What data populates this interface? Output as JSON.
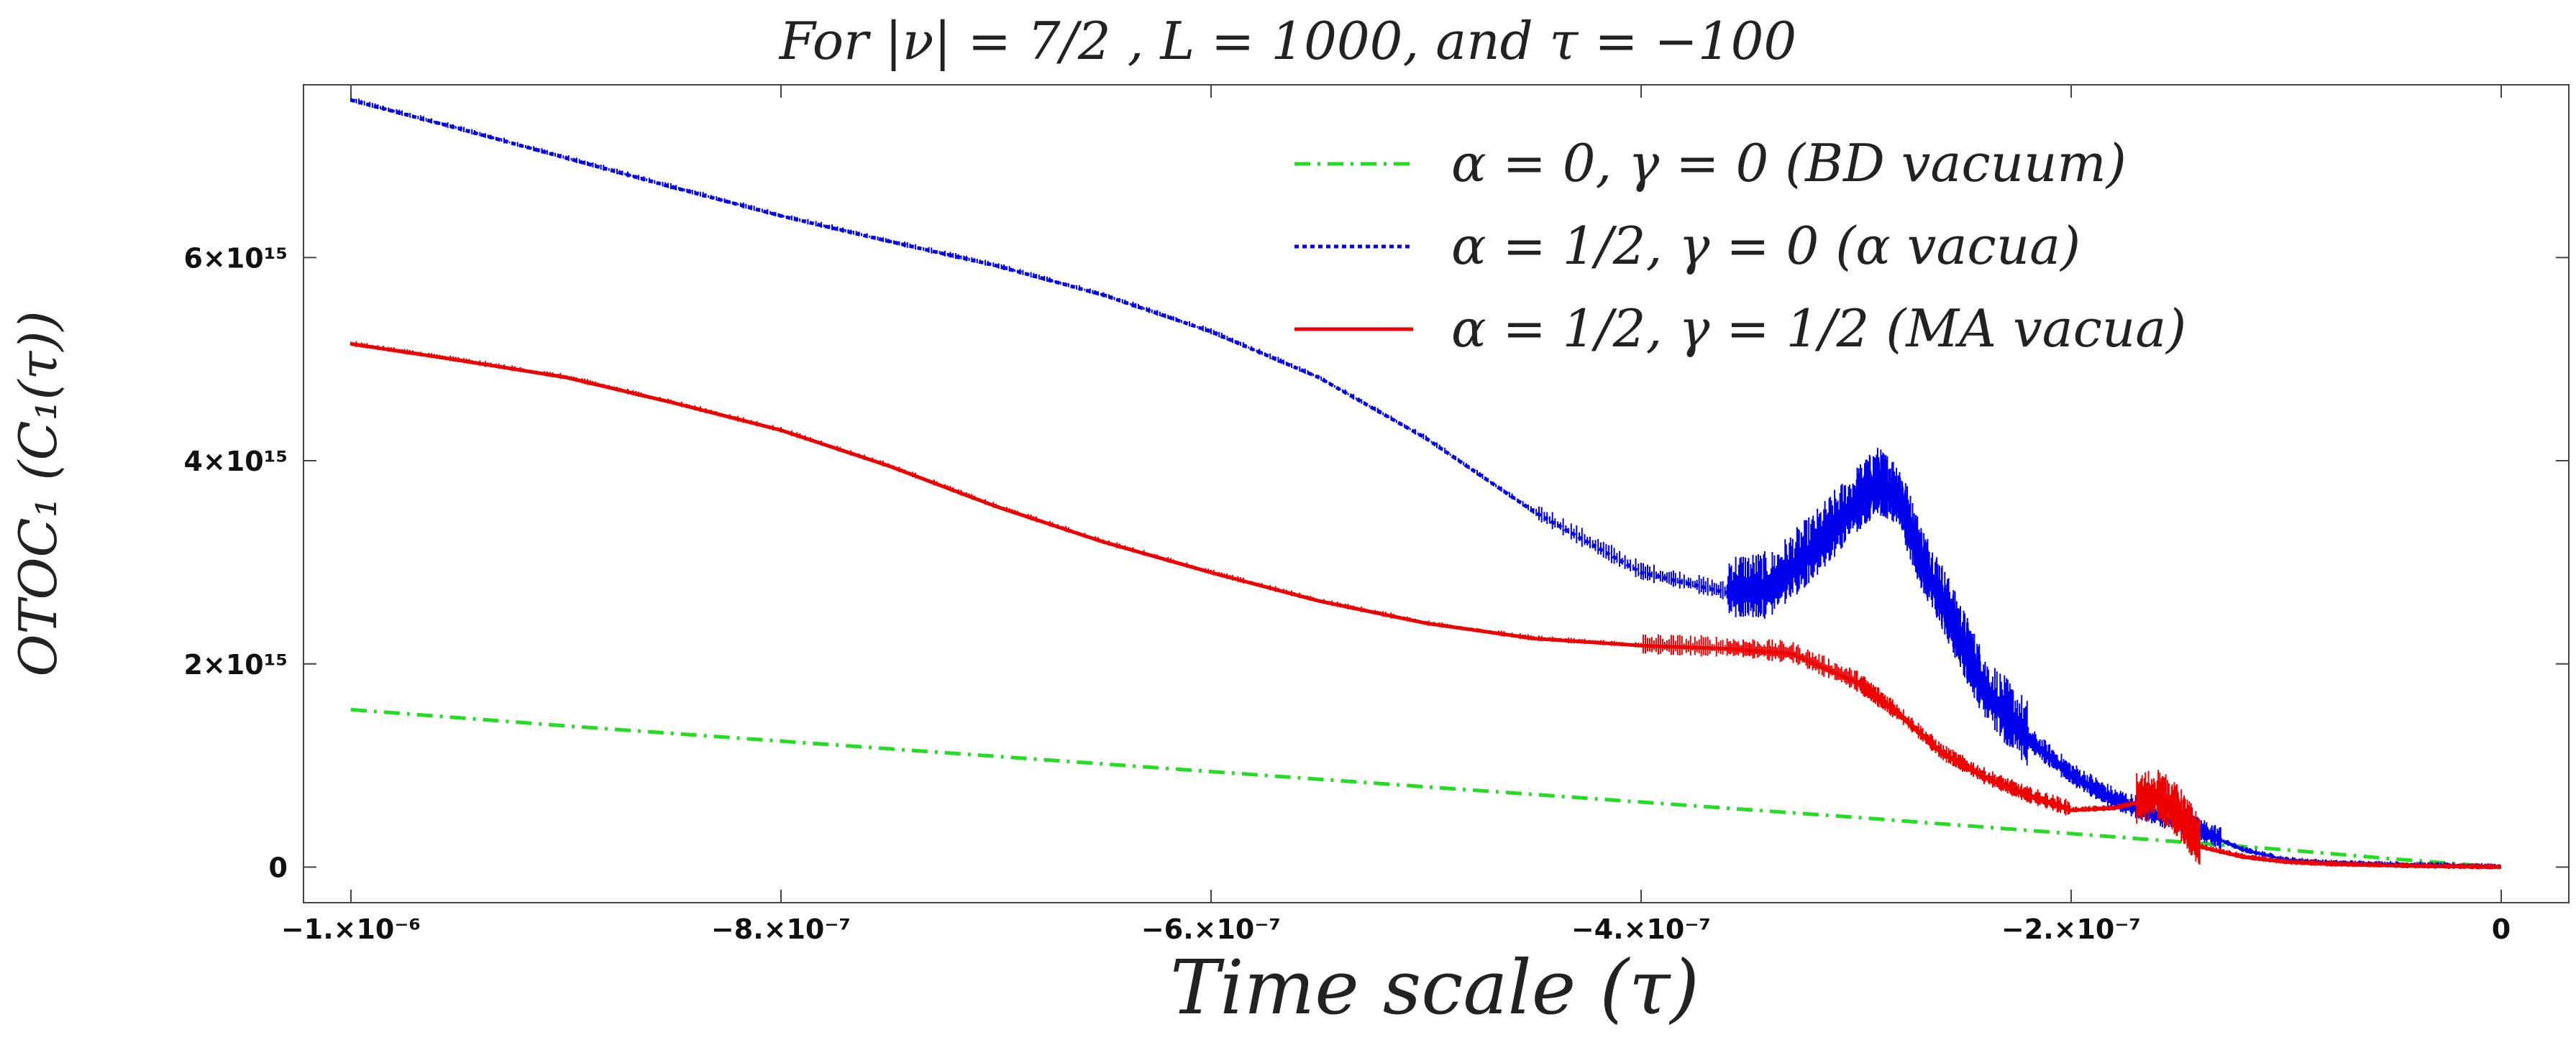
{
  "chart_data": {
    "type": "line",
    "title": "For |ν| = 7/2 , L = 1000,  and τ = −100",
    "xlabel": "Time scale  (τ)",
    "ylabel": "OTOC₁ (C₁(τ))",
    "xlim": [
      -1e-06,
      0
    ],
    "ylim": [
      -350000000000000.0,
      7700000000000000.0
    ],
    "x_ticks": [
      {
        "value": -1e-06,
        "label": "−1.×10⁻⁶"
      },
      {
        "value": -8e-07,
        "label": "−8.×10⁻⁷"
      },
      {
        "value": -6e-07,
        "label": "−6.×10⁻⁷"
      },
      {
        "value": -4e-07,
        "label": "−4.×10⁻⁷"
      },
      {
        "value": -2e-07,
        "label": "−2.×10⁻⁷"
      },
      {
        "value": 0,
        "label": "0"
      }
    ],
    "y_ticks": [
      {
        "value": 0,
        "label": "0"
      },
      {
        "value": 2000000000000000.0,
        "label": "2×10¹⁵"
      },
      {
        "value": 4000000000000000.0,
        "label": "4×10¹⁵"
      },
      {
        "value": 6000000000000000.0,
        "label": "6×10¹⁵"
      }
    ],
    "legend_position": "top-right",
    "series": [
      {
        "name": "α = 0, γ = 0 (BD vacuum)",
        "color": "#22dd22",
        "style": "dash-dot",
        "noisy": false,
        "x": [
          -1e-06,
          -9e-07,
          -8e-07,
          -7e-07,
          -6e-07,
          -5e-07,
          -4e-07,
          -3e-07,
          -2e-07,
          -1.5e-07,
          -1e-07,
          -5e-08,
          0
        ],
        "y": [
          1550000000000000.0,
          1390000000000000.0,
          1240000000000000.0,
          1090000000000000.0,
          940000000000000.0,
          790000000000000.0,
          640000000000000.0,
          490000000000000.0,
          330000000000000.0,
          250000000000000.0,
          170000000000000.0,
          80000000000000.0,
          0.0
        ]
      },
      {
        "name": "α = 1/2, γ = 0 (α vacua)",
        "color": "#0000ee",
        "style": "dotted",
        "noisy": true,
        "x": [
          -1e-06,
          -9.5e-07,
          -9e-07,
          -8.5e-07,
          -8e-07,
          -7.5e-07,
          -7e-07,
          -6.5e-07,
          -6e-07,
          -5.5e-07,
          -5e-07,
          -4.5e-07,
          -4e-07,
          -3.6e-07,
          -3.4e-07,
          -3.2e-07,
          -3e-07,
          -2.9e-07,
          -2.8e-07,
          -2.7e-07,
          -2.6e-07,
          -2.5e-07,
          -2.4e-07,
          -2.2e-07,
          -2e-07,
          -1.8e-07,
          -1.6e-07,
          -1.4e-07,
          -1.2e-07,
          -1e-07,
          -8e-08,
          -6e-08,
          -4e-08,
          -2e-08,
          0
        ],
        "y": [
          7550000000000000.0,
          7270000000000000.0,
          6980000000000000.0,
          6690000000000000.0,
          6410000000000000.0,
          6160000000000000.0,
          5920000000000000.0,
          5630000000000000.0,
          5270000000000000.0,
          4820000000000000.0,
          4220000000000000.0,
          3500000000000000.0,
          2900000000000000.0,
          2700000000000000.0,
          2720000000000000.0,
          3100000000000000.0,
          3550000000000000.0,
          3750000000000000.0,
          3600000000000000.0,
          3000000000000000.0,
          2600000000000000.0,
          2150000000000000.0,
          1700000000000000.0,
          1250000000000000.0,
          900000000000000.0,
          650000000000000.0,
          500000000000000.0,
          350000000000000.0,
          170000000000000.0,
          70000000000000.0,
          40000000000000.0,
          30000000000000.0,
          20000000000000.0,
          10000000000000.0,
          0.0
        ]
      },
      {
        "name": "α = 1/2, γ = 1/2 (MA vacua)",
        "color": "#ee0000",
        "style": "solid",
        "noisy": true,
        "x": [
          -1e-06,
          -9.5e-07,
          -9e-07,
          -8.5e-07,
          -8e-07,
          -7.5e-07,
          -7e-07,
          -6.5e-07,
          -6e-07,
          -5.5e-07,
          -5e-07,
          -4.5e-07,
          -4e-07,
          -3.6e-07,
          -3.3e-07,
          -3e-07,
          -2.8e-07,
          -2.6e-07,
          -2.4e-07,
          -2.2e-07,
          -2e-07,
          -1.8e-07,
          -1.6e-07,
          -1.5e-07,
          -1.4e-07,
          -1.2e-07,
          -1e-07,
          -8e-08,
          -6e-08,
          -4e-08,
          -2e-08,
          0
        ],
        "y": [
          5150000000000000.0,
          4990000000000000.0,
          4820000000000000.0,
          4570000000000000.0,
          4300000000000000.0,
          3950000000000000.0,
          3550000000000000.0,
          3200000000000000.0,
          2900000000000000.0,
          2620000000000000.0,
          2400000000000000.0,
          2250000000000000.0,
          2180000000000000.0,
          2150000000000000.0,
          2100000000000000.0,
          1820000000000000.0,
          1500000000000000.0,
          1120000000000000.0,
          880000000000000.0,
          700000000000000.0,
          560000000000000.0,
          580000000000000.0,
          680000000000000.0,
          500000000000000.0,
          200000000000000.0,
          100000000000000.0,
          50000000000000.0,
          30000000000000.0,
          20000000000000.0,
          10000000000000.0,
          5000000000000.0,
          0.0
        ]
      }
    ]
  }
}
